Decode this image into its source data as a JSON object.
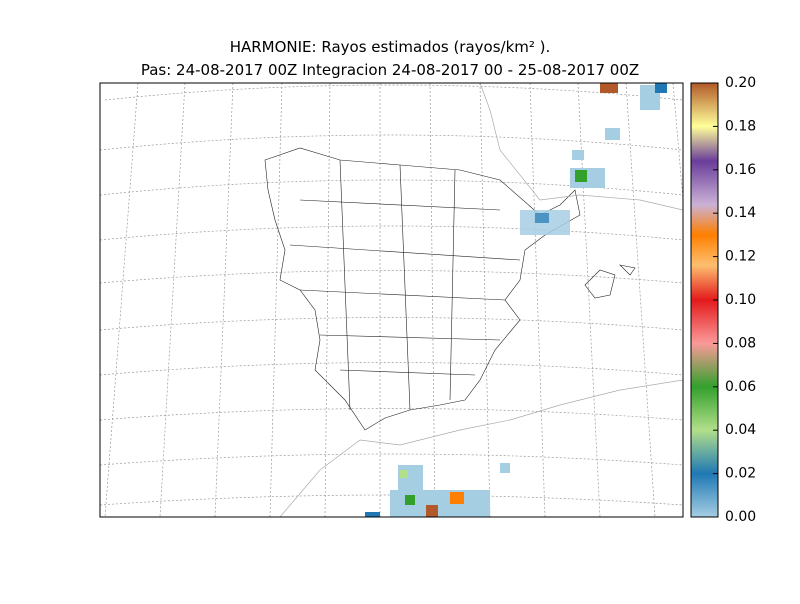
{
  "map": {
    "title": "HARMONIE: Rayos estimados  (rayos/km² ).",
    "subtitle": "Pas: 24-08-2017 00Z Integracion 24-08-2017 00 - 25-08-2017 00Z",
    "colorbar": {
      "lim": [
        0,
        0.2
      ],
      "ticks": [
        {
          "value": 0,
          "label": "0.00"
        },
        {
          "value": 0.02,
          "label": "0.02"
        },
        {
          "value": 0.04,
          "label": "0.04"
        },
        {
          "value": 0.06,
          "label": "0.06"
        },
        {
          "value": 0.08,
          "label": "0.08"
        },
        {
          "value": 0.1,
          "label": "0.10"
        },
        {
          "value": 0.12,
          "label": "0.12"
        },
        {
          "value": 0.14,
          "label": "0.14"
        },
        {
          "value": 0.16,
          "label": "0.16"
        },
        {
          "value": 0.18,
          "label": "0.18"
        },
        {
          "value": 0.2,
          "label": "0.20"
        }
      ]
    }
  }
}
